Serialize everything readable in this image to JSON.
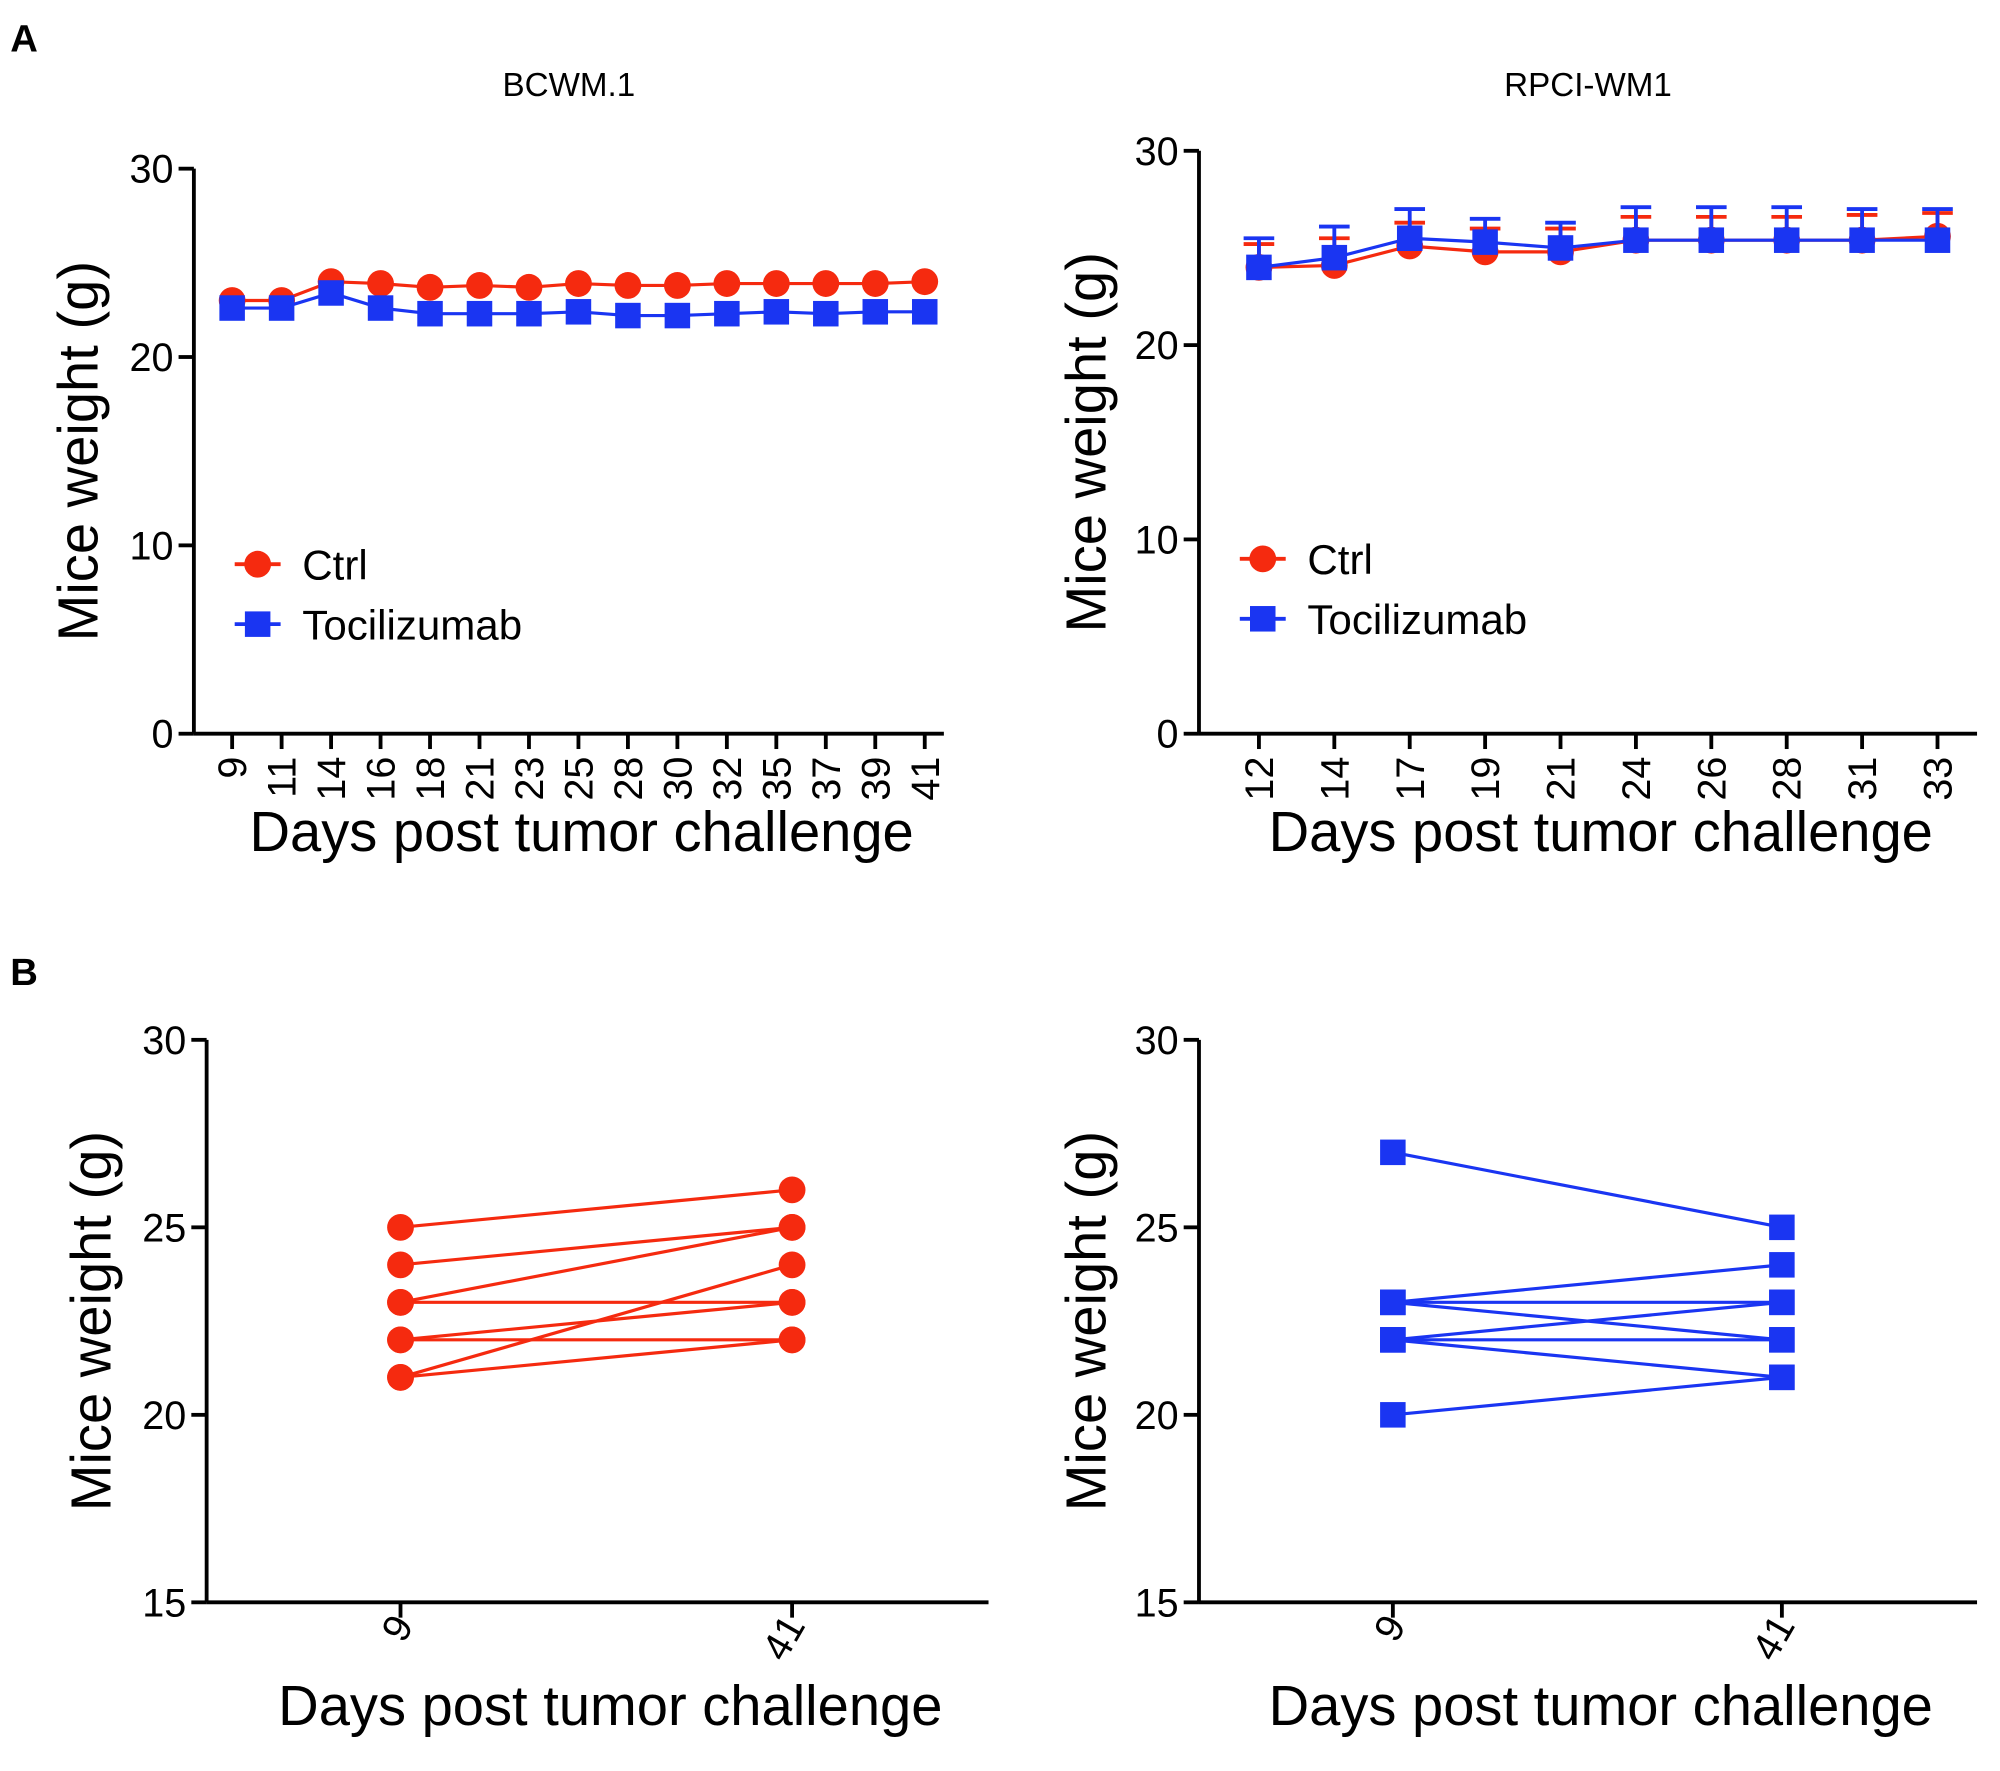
{
  "panel_labels": [
    "A",
    "B"
  ],
  "chart_data": [
    {
      "type": "line",
      "title": "BCWM.1",
      "x_label": "Days post tumor challenge",
      "y_label": "Mice weight (g)",
      "categories": [
        "9",
        "11",
        "14",
        "16",
        "18",
        "21",
        "23",
        "25",
        "28",
        "30",
        "32",
        "35",
        "37",
        "39",
        "41"
      ],
      "ylim": [
        0,
        30
      ],
      "yticks": [
        0,
        10,
        20,
        30
      ],
      "legend": "center left",
      "x_tick_rotation": -90,
      "series": [
        {
          "name": "Ctrl",
          "color": "#f52a0f",
          "marker": "circle",
          "values": [
            23.0,
            23.0,
            24.0,
            23.9,
            23.7,
            23.8,
            23.7,
            23.9,
            23.8,
            23.8,
            23.9,
            23.9,
            23.9,
            23.9,
            24.0
          ]
        },
        {
          "name": "Tocilizumab",
          "color": "#1a35f2",
          "marker": "square",
          "values": [
            22.6,
            22.6,
            23.4,
            22.6,
            22.3,
            22.3,
            22.3,
            22.4,
            22.2,
            22.2,
            22.3,
            22.4,
            22.3,
            22.4,
            22.4
          ]
        }
      ]
    },
    {
      "type": "line",
      "title": "RPCI-WM1",
      "x_label": "Days post tumor challenge",
      "y_label": "Mice weight (g)",
      "categories": [
        "12",
        "14",
        "17",
        "19",
        "21",
        "24",
        "26",
        "28",
        "31",
        "33"
      ],
      "ylim": [
        0,
        30
      ],
      "yticks": [
        0,
        10,
        20,
        30
      ],
      "legend": "center left",
      "x_tick_rotation": -90,
      "series": [
        {
          "name": "Ctrl",
          "color": "#f52a0f",
          "marker": "circle",
          "values": [
            24.0,
            24.1,
            25.1,
            24.8,
            24.8,
            25.4,
            25.4,
            25.4,
            25.4,
            25.6
          ],
          "errors": [
            1.2,
            1.4,
            1.2,
            1.2,
            1.2,
            1.2,
            1.2,
            1.2,
            1.3,
            1.2
          ]
        },
        {
          "name": "Tocilizumab",
          "color": "#1a35f2",
          "marker": "square",
          "values": [
            24.0,
            24.5,
            25.5,
            25.3,
            25.0,
            25.4,
            25.4,
            25.4,
            25.4,
            25.4
          ],
          "errors": [
            1.5,
            1.6,
            1.5,
            1.2,
            1.3,
            1.7,
            1.7,
            1.7,
            1.6,
            1.6
          ]
        }
      ]
    },
    {
      "type": "line",
      "x_label": "Days post tumor challenge",
      "y_label": "Mice weight (g)",
      "categories": [
        "9",
        "41"
      ],
      "ylim": [
        15,
        30
      ],
      "yticks": [
        15,
        20,
        25,
        30
      ],
      "x_tick_rotation": -60,
      "color": "#f52a0f",
      "marker": "circle",
      "series": [
        {
          "values": [
            25,
            26
          ]
        },
        {
          "values": [
            24,
            25
          ]
        },
        {
          "values": [
            23,
            25
          ]
        },
        {
          "values": [
            23,
            23
          ]
        },
        {
          "values": [
            22,
            23
          ]
        },
        {
          "values": [
            22,
            22
          ]
        },
        {
          "values": [
            21,
            24
          ]
        },
        {
          "values": [
            21,
            22
          ]
        }
      ]
    },
    {
      "type": "line",
      "x_label": "Days post tumor challenge",
      "y_label": "Mice weight (g)",
      "categories": [
        "9",
        "41"
      ],
      "ylim": [
        15,
        30
      ],
      "yticks": [
        15,
        20,
        25,
        30
      ],
      "x_tick_rotation": -60,
      "color": "#1a35f2",
      "marker": "square",
      "series": [
        {
          "values": [
            27,
            25
          ]
        },
        {
          "values": [
            23,
            24
          ]
        },
        {
          "values": [
            23,
            23
          ]
        },
        {
          "values": [
            23,
            22
          ]
        },
        {
          "values": [
            22,
            23
          ]
        },
        {
          "values": [
            22,
            22
          ]
        },
        {
          "values": [
            22,
            21
          ]
        },
        {
          "values": [
            20,
            21
          ]
        }
      ]
    }
  ]
}
